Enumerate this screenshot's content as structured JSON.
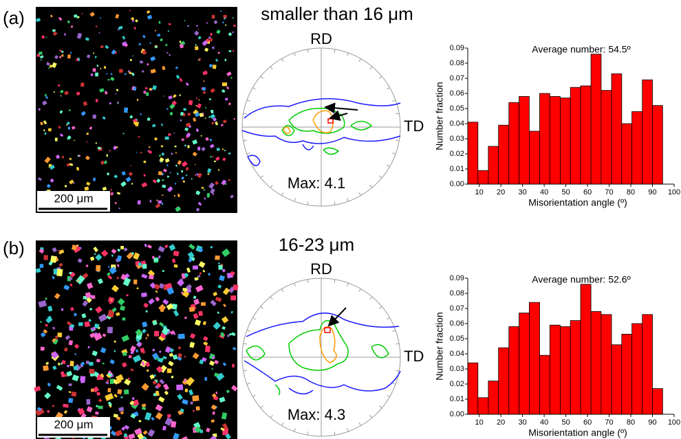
{
  "panels": [
    {
      "label": "(a)",
      "title": "smaller than 16 μm",
      "scale_bar": "200 μm",
      "pole_figure": {
        "rd": "RD",
        "td": "TD",
        "max": "Max: 4.1"
      }
    },
    {
      "label": "(b)",
      "title": "16-23 μm",
      "scale_bar": "200 μm",
      "pole_figure": {
        "rd": "RD",
        "td": "TD",
        "max": "Max: 4.3"
      }
    }
  ],
  "chart_data": [
    {
      "type": "histogram",
      "annotation": "Average number: 54.5º",
      "x_label": "Misorientation angle (º)",
      "y_label": "Number fraction",
      "color": "#ff0000",
      "bins": [
        4.7,
        9.4,
        14.2,
        18.9,
        23.7,
        28.4,
        33.1,
        37.9,
        42.6,
        47.4,
        52.1,
        56.8,
        61.6,
        66.3,
        71.1,
        75.8,
        80.5,
        85.3,
        90.0,
        94.7
      ],
      "values": [
        0.041,
        0.009,
        0.025,
        0.039,
        0.054,
        0.058,
        0.035,
        0.06,
        0.058,
        0.057,
        0.064,
        0.065,
        0.086,
        0.062,
        0.073,
        0.04,
        0.048,
        0.069,
        0.052
      ],
      "xlim": [
        4.7,
        100
      ],
      "xticks": [
        10,
        20,
        30,
        40,
        50,
        60,
        70,
        80,
        90,
        100
      ],
      "ylim": [
        0,
        0.09
      ],
      "yticks": [
        {
          "value": 0,
          "label": "0.00"
        },
        {
          "value": 0.01,
          "label": "0.01"
        },
        {
          "value": 0.02,
          "label": "0.02"
        },
        {
          "value": 0.03,
          "label": "0.03"
        },
        {
          "value": 0.04,
          "label": "0.04"
        },
        {
          "value": 0.05,
          "label": "0.05"
        },
        {
          "value": 0.06,
          "label": "0.06"
        },
        {
          "value": 0.07,
          "label": "0.07"
        },
        {
          "value": 0.08,
          "label": "0.08"
        },
        {
          "value": 0.09,
          "label": "0.09"
        }
      ]
    },
    {
      "type": "histogram",
      "annotation": "Average number: 52.6º",
      "x_label": "Misorientation angle (º)",
      "y_label": "Number fraction",
      "color": "#ff0000",
      "bins": [
        4.7,
        9.4,
        14.2,
        18.9,
        23.7,
        28.4,
        33.1,
        37.9,
        42.6,
        47.4,
        52.1,
        56.8,
        61.6,
        66.3,
        71.1,
        75.8,
        80.5,
        85.3,
        90.0,
        94.7
      ],
      "values": [
        0.034,
        0.011,
        0.022,
        0.044,
        0.058,
        0.067,
        0.074,
        0.039,
        0.059,
        0.058,
        0.062,
        0.086,
        0.068,
        0.066,
        0.046,
        0.053,
        0.06,
        0.066,
        0.017
      ],
      "xlim": [
        4.7,
        100
      ],
      "xticks": [
        10,
        20,
        30,
        40,
        50,
        60,
        70,
        80,
        90,
        100
      ],
      "ylim": [
        0,
        0.09
      ],
      "yticks": [
        {
          "value": 0,
          "label": "0.00"
        },
        {
          "value": 0.01,
          "label": "0.01"
        },
        {
          "value": 0.02,
          "label": "0.02"
        },
        {
          "value": 0.03,
          "label": "0.03"
        },
        {
          "value": 0.04,
          "label": "0.04"
        },
        {
          "value": 0.05,
          "label": "0.05"
        },
        {
          "value": 0.06,
          "label": "0.06"
        },
        {
          "value": 0.07,
          "label": "0.07"
        },
        {
          "value": 0.08,
          "label": "0.08"
        },
        {
          "value": 0.09,
          "label": "0.09"
        }
      ]
    }
  ]
}
